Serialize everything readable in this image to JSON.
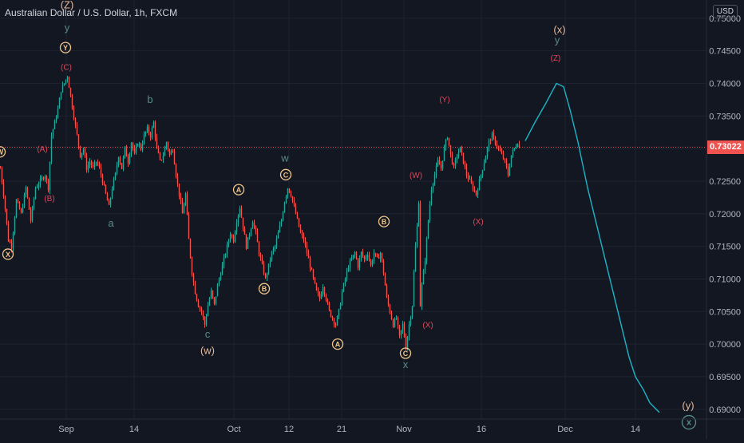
{
  "header": {
    "title": "Australian Dollar / U.S. Dollar, 1h, FXCM",
    "currency": "USD"
  },
  "colors": {
    "background": "#131722",
    "grid": "#1f2230",
    "up": "#26a69a",
    "down": "#ef5350",
    "axis_text": "#b2b5be",
    "wave_teal": "#5a8b8a",
    "wave_orange": "#f0c68a",
    "wave_pink": "#e0465a",
    "projection": "#1bb5c8"
  },
  "chart_data": {
    "type": "candlestick",
    "ylim": [
      0.6885,
      0.7528
    ],
    "y_ticks": [
      "0.75000",
      "0.74500",
      "0.74000",
      "0.73500",
      "0.73000",
      "0.72500",
      "0.72000",
      "0.71500",
      "0.71000",
      "0.70500",
      "0.70000",
      "0.69500",
      "0.69000"
    ],
    "x_ticks": [
      "Sep",
      "14",
      "Oct",
      "12",
      "21",
      "Nov",
      "16",
      "Dec",
      "14"
    ],
    "current_price": 0.73022,
    "current_price_label": "0.73022",
    "price_path": [
      [
        0,
        0.727
      ],
      [
        5,
        0.722
      ],
      [
        10,
        0.716
      ],
      [
        14,
        0.715
      ],
      [
        20,
        0.722
      ],
      [
        26,
        0.72
      ],
      [
        32,
        0.724
      ],
      [
        38,
        0.719
      ],
      [
        44,
        0.724
      ],
      [
        50,
        0.725
      ],
      [
        56,
        0.726
      ],
      [
        60,
        0.724
      ],
      [
        64,
        0.732
      ],
      [
        68,
        0.734
      ],
      [
        72,
        0.736
      ],
      [
        76,
        0.739
      ],
      [
        80,
        0.74
      ],
      [
        84,
        0.7412
      ],
      [
        88,
        0.738
      ],
      [
        92,
        0.735
      ],
      [
        96,
        0.732
      ],
      [
        100,
        0.729
      ],
      [
        104,
        0.73
      ],
      [
        108,
        0.727
      ],
      [
        112,
        0.728
      ],
      [
        116,
        0.727
      ],
      [
        120,
        0.728
      ],
      [
        124,
        0.727
      ],
      [
        128,
        0.725
      ],
      [
        132,
        0.723
      ],
      [
        136,
        0.721
      ],
      [
        140,
        0.724
      ],
      [
        144,
        0.726
      ],
      [
        148,
        0.729
      ],
      [
        152,
        0.727
      ],
      [
        156,
        0.73
      ],
      [
        160,
        0.728
      ],
      [
        164,
        0.731
      ],
      [
        168,
        0.729
      ],
      [
        172,
        0.731
      ],
      [
        176,
        0.73
      ],
      [
        180,
        0.732
      ],
      [
        184,
        0.733
      ],
      [
        188,
        0.732
      ],
      [
        192,
        0.734
      ],
      [
        196,
        0.73
      ],
      [
        200,
        0.728
      ],
      [
        204,
        0.729
      ],
      [
        208,
        0.731
      ],
      [
        212,
        0.729
      ],
      [
        216,
        0.73
      ],
      [
        220,
        0.726
      ],
      [
        224,
        0.723
      ],
      [
        228,
        0.72
      ],
      [
        232,
        0.723
      ],
      [
        236,
        0.716
      ],
      [
        240,
        0.711
      ],
      [
        244,
        0.708
      ],
      [
        248,
        0.706
      ],
      [
        252,
        0.705
      ],
      [
        256,
        0.703
      ],
      [
        260,
        0.706
      ],
      [
        264,
        0.708
      ],
      [
        268,
        0.706
      ],
      [
        272,
        0.709
      ],
      [
        276,
        0.711
      ],
      [
        280,
        0.713
      ],
      [
        284,
        0.715
      ],
      [
        288,
        0.717
      ],
      [
        292,
        0.716
      ],
      [
        296,
        0.719
      ],
      [
        300,
        0.721
      ],
      [
        304,
        0.718
      ],
      [
        308,
        0.715
      ],
      [
        312,
        0.717
      ],
      [
        316,
        0.719
      ],
      [
        320,
        0.717
      ],
      [
        324,
        0.714
      ],
      [
        328,
        0.712
      ],
      [
        332,
        0.71
      ],
      [
        336,
        0.712
      ],
      [
        340,
        0.714
      ],
      [
        344,
        0.715
      ],
      [
        348,
        0.717
      ],
      [
        352,
        0.719
      ],
      [
        356,
        0.722
      ],
      [
        360,
        0.724
      ],
      [
        364,
        0.723
      ],
      [
        368,
        0.721
      ],
      [
        372,
        0.719
      ],
      [
        376,
        0.717
      ],
      [
        380,
        0.716
      ],
      [
        384,
        0.714
      ],
      [
        388,
        0.712
      ],
      [
        392,
        0.71
      ],
      [
        396,
        0.708
      ],
      [
        400,
        0.707
      ],
      [
        404,
        0.709
      ],
      [
        408,
        0.707
      ],
      [
        412,
        0.705
      ],
      [
        416,
        0.704
      ],
      [
        420,
        0.703
      ],
      [
        424,
        0.705
      ],
      [
        428,
        0.708
      ],
      [
        432,
        0.71
      ],
      [
        436,
        0.712
      ],
      [
        440,
        0.713
      ],
      [
        444,
        0.714
      ],
      [
        448,
        0.712
      ],
      [
        452,
        0.714
      ],
      [
        456,
        0.713
      ],
      [
        460,
        0.714
      ],
      [
        464,
        0.712
      ],
      [
        468,
        0.714
      ],
      [
        472,
        0.713
      ],
      [
        476,
        0.714
      ],
      [
        480,
        0.711
      ],
      [
        484,
        0.707
      ],
      [
        488,
        0.705
      ],
      [
        492,
        0.703
      ],
      [
        496,
        0.704
      ],
      [
        500,
        0.701
      ],
      [
        504,
        0.703
      ],
      [
        508,
        0.6995
      ],
      [
        512,
        0.703
      ],
      [
        516,
        0.706
      ],
      [
        518,
        0.711
      ],
      [
        520,
        0.715
      ],
      [
        522,
        0.718
      ],
      [
        524,
        0.722
      ],
      [
        526,
        0.706
      ],
      [
        528,
        0.709
      ],
      [
        532,
        0.713
      ],
      [
        536,
        0.719
      ],
      [
        540,
        0.724
      ],
      [
        544,
        0.726
      ],
      [
        548,
        0.728
      ],
      [
        552,
        0.727
      ],
      [
        556,
        0.73
      ],
      [
        560,
        0.732
      ],
      [
        564,
        0.729
      ],
      [
        568,
        0.727
      ],
      [
        572,
        0.729
      ],
      [
        576,
        0.73
      ],
      [
        580,
        0.728
      ],
      [
        584,
        0.726
      ],
      [
        588,
        0.725
      ],
      [
        592,
        0.724
      ],
      [
        596,
        0.723
      ],
      [
        600,
        0.725
      ],
      [
        604,
        0.727
      ],
      [
        608,
        0.729
      ],
      [
        612,
        0.731
      ],
      [
        616,
        0.732
      ],
      [
        620,
        0.731
      ],
      [
        624,
        0.73
      ],
      [
        628,
        0.729
      ],
      [
        632,
        0.728
      ],
      [
        636,
        0.726
      ],
      [
        640,
        0.729
      ],
      [
        644,
        0.73
      ],
      [
        648,
        0.731
      ],
      [
        650,
        0.7302
      ]
    ],
    "projection_path": [
      [
        658,
        0.7312
      ],
      [
        670,
        0.734
      ],
      [
        684,
        0.737
      ],
      [
        697,
        0.74
      ],
      [
        706,
        0.7395
      ],
      [
        714,
        0.736
      ],
      [
        724,
        0.731
      ],
      [
        736,
        0.724
      ],
      [
        748,
        0.718
      ],
      [
        760,
        0.712
      ],
      [
        772,
        0.706
      ],
      [
        780,
        0.702
      ],
      [
        788,
        0.698
      ],
      [
        796,
        0.695
      ],
      [
        806,
        0.693
      ],
      [
        814,
        0.691
      ],
      [
        826,
        0.6895
      ]
    ],
    "annotations": [
      {
        "x": 0,
        "price": 0.7295,
        "text": "W",
        "style": "circle",
        "color": "orange"
      },
      {
        "x": 10,
        "price": 0.7138,
        "text": "X",
        "style": "circle",
        "color": "orange"
      },
      {
        "x": 53,
        "price": 0.73,
        "text": "(A)",
        "style": "plain",
        "color": "pink"
      },
      {
        "x": 62,
        "price": 0.7224,
        "text": "(B)",
        "style": "plain",
        "color": "pink"
      },
      {
        "x": 84,
        "price": 0.752,
        "text": "(Z)",
        "style": "plain",
        "color": "orange_light"
      },
      {
        "x": 84,
        "price": 0.7485,
        "text": "y",
        "style": "plain",
        "color": "teal"
      },
      {
        "x": 82,
        "price": 0.7455,
        "text": "Y",
        "style": "circle",
        "color": "orange"
      },
      {
        "x": 83,
        "price": 0.7426,
        "text": "(C)",
        "style": "plain",
        "color": "pink"
      },
      {
        "x": 188,
        "price": 0.7375,
        "text": "b",
        "style": "plain",
        "color": "teal"
      },
      {
        "x": 139,
        "price": 0.7185,
        "text": "a",
        "style": "plain",
        "color": "teal"
      },
      {
        "x": 260,
        "price": 0.7015,
        "text": "c",
        "style": "plain",
        "color": "teal"
      },
      {
        "x": 260,
        "price": 0.699,
        "text": "(w)",
        "style": "plain",
        "color": "orange_light"
      },
      {
        "x": 299,
        "price": 0.7237,
        "text": "A",
        "style": "circle",
        "color": "orange"
      },
      {
        "x": 331,
        "price": 0.7085,
        "text": "B",
        "style": "circle",
        "color": "orange"
      },
      {
        "x": 357,
        "price": 0.7285,
        "text": "w",
        "style": "plain",
        "color": "teal"
      },
      {
        "x": 358,
        "price": 0.726,
        "text": "C",
        "style": "circle",
        "color": "orange"
      },
      {
        "x": 423,
        "price": 0.7,
        "text": "A",
        "style": "circle",
        "color": "orange"
      },
      {
        "x": 481,
        "price": 0.7188,
        "text": "B",
        "style": "circle",
        "color": "orange"
      },
      {
        "x": 508,
        "price": 0.6986,
        "text": "C",
        "style": "circle",
        "color": "orange"
      },
      {
        "x": 508,
        "price": 0.6968,
        "text": "x",
        "style": "plain",
        "color": "teal"
      },
      {
        "x": 536,
        "price": 0.703,
        "text": "(X)",
        "style": "plain",
        "color": "pink"
      },
      {
        "x": 521,
        "price": 0.726,
        "text": "(W)",
        "style": "plain",
        "color": "pink"
      },
      {
        "x": 557,
        "price": 0.7376,
        "text": "(Y)",
        "style": "plain",
        "color": "pink"
      },
      {
        "x": 599,
        "price": 0.7189,
        "text": "(X)",
        "style": "plain",
        "color": "pink"
      },
      {
        "x": 701,
        "price": 0.7482,
        "text": "(x)",
        "style": "plain",
        "color": "orange_light"
      },
      {
        "x": 698,
        "price": 0.7466,
        "text": "y",
        "style": "plain",
        "color": "teal"
      },
      {
        "x": 696,
        "price": 0.744,
        "text": "(Z)",
        "style": "plain",
        "color": "pink"
      },
      {
        "x": 862,
        "price": 0.6905,
        "text": "(y)",
        "style": "plain",
        "color": "orange_light"
      },
      {
        "x": 863,
        "price": 0.688,
        "text": "x",
        "style": "circle",
        "color": "teal"
      }
    ]
  }
}
